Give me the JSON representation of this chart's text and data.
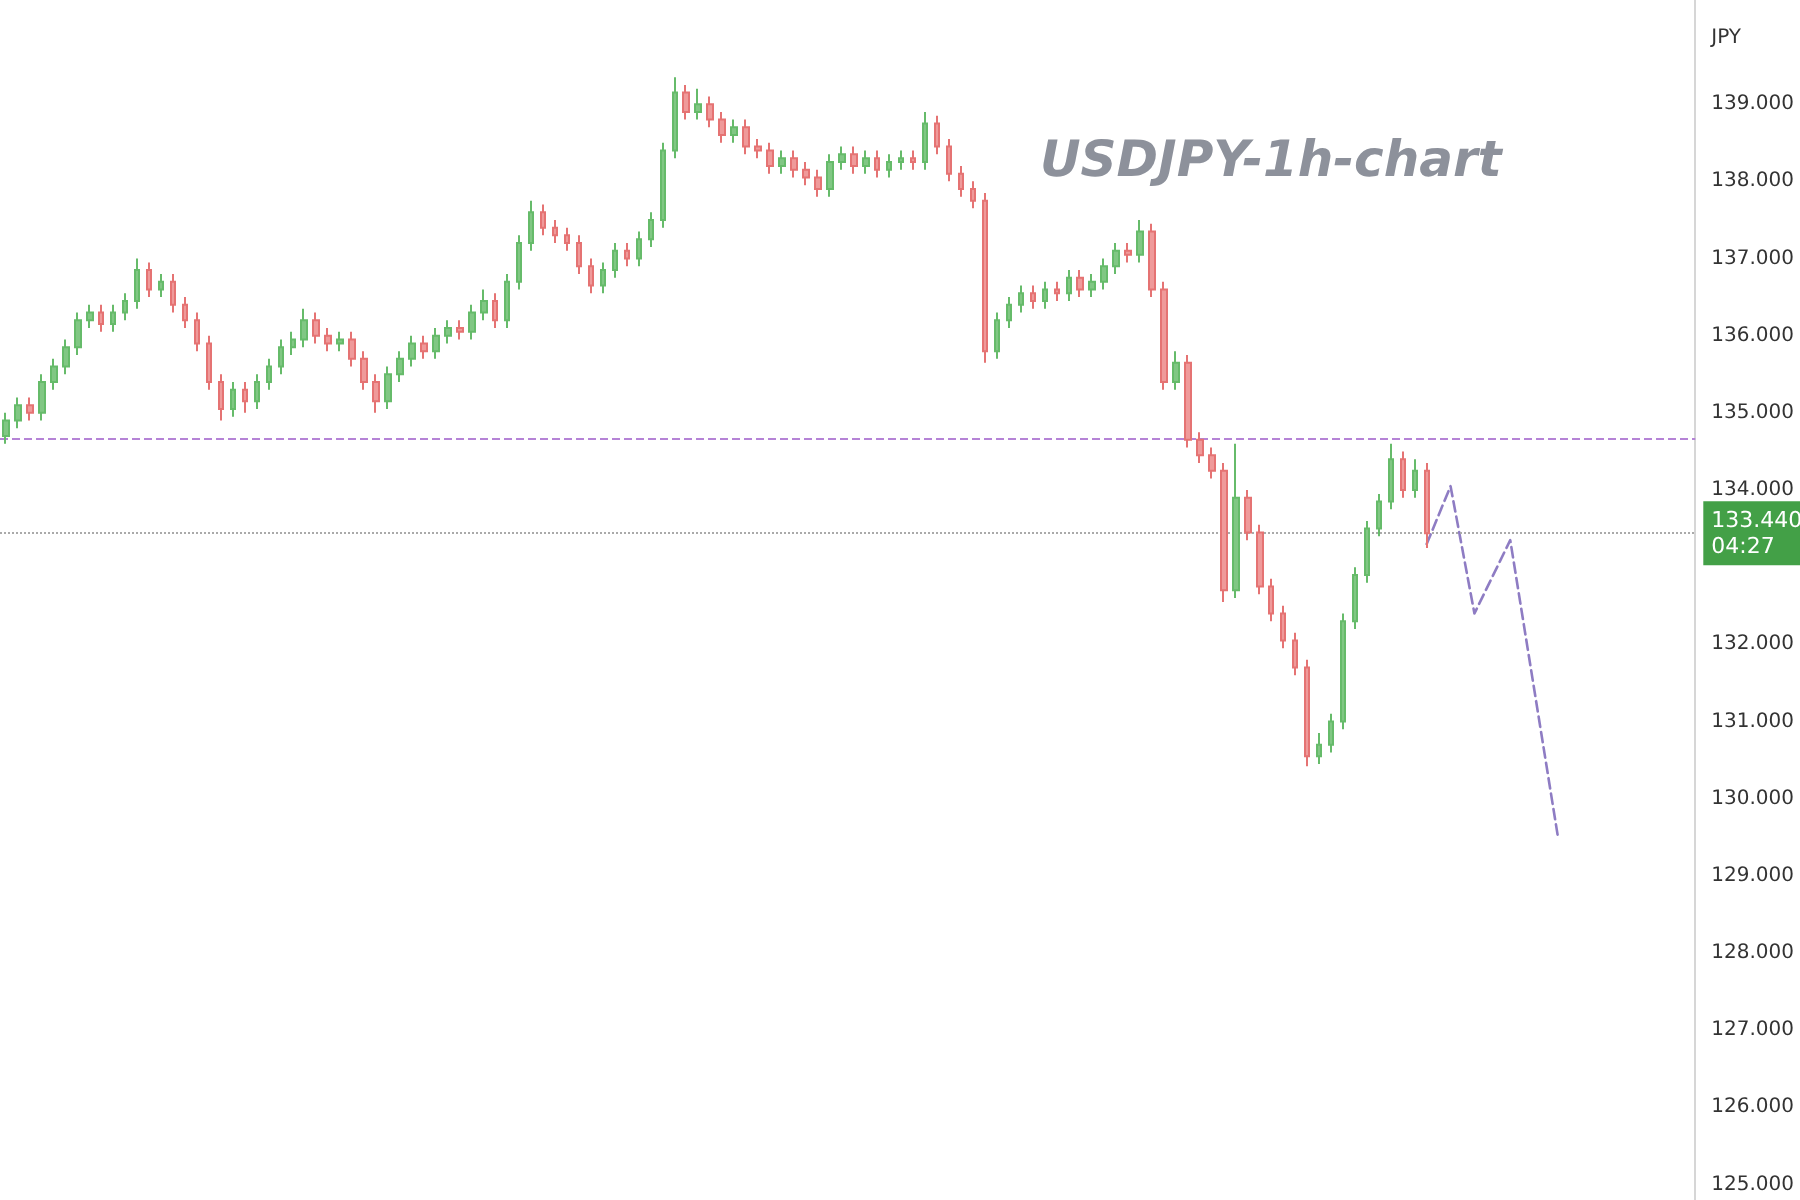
{
  "chart_data": {
    "type": "candlestick",
    "title": "USDJPY-1h-chart",
    "ylabel": "JPY",
    "categories": [
      null,
      null,
      null,
      null,
      null,
      null,
      null,
      null,
      null,
      null,
      null,
      null,
      null,
      null,
      null,
      null,
      null,
      null,
      null,
      null,
      null,
      null,
      null,
      null,
      null,
      null,
      null,
      null,
      null,
      null,
      null,
      null,
      null,
      null,
      null,
      null,
      null,
      null,
      null,
      null,
      null,
      null,
      null,
      null,
      null,
      null,
      null,
      null,
      null,
      null,
      null,
      null,
      null,
      null,
      null,
      null,
      null,
      null,
      null,
      null,
      null,
      null,
      null,
      null,
      null,
      null,
      null,
      null,
      null,
      null,
      null,
      null,
      null,
      null,
      null,
      null,
      null,
      null,
      null,
      null,
      null,
      null,
      null,
      null,
      null,
      null,
      null,
      null,
      null,
      null,
      null,
      null,
      null,
      null,
      null,
      null,
      null,
      null,
      null,
      null,
      null,
      null,
      null,
      null,
      null,
      null,
      null,
      null,
      null,
      null,
      null,
      null,
      null,
      null,
      null,
      null,
      null,
      null,
      null,
      null,
      null,
      null,
      null,
      null,
      null,
      null,
      null,
      null,
      null,
      null,
      null,
      null,
      null,
      null,
      null,
      null,
      null,
      null,
      null,
      null,
      null,
      null
    ],
    "ylim": [
      124.8,
      140.35
    ],
    "yticks": [
      {
        "value": 125,
        "label": "125.000"
      },
      {
        "value": 126,
        "label": "126.000"
      },
      {
        "value": 127,
        "label": "127.000"
      },
      {
        "value": 128,
        "label": "128.000"
      },
      {
        "value": 129,
        "label": "129.000"
      },
      {
        "value": 130,
        "label": "130.000"
      },
      {
        "value": 131,
        "label": "131.000"
      },
      {
        "value": 132,
        "label": "132.000"
      },
      {
        "value": 134,
        "label": "134.000"
      },
      {
        "value": 135,
        "label": "135.000"
      },
      {
        "value": 136,
        "label": "136.000"
      },
      {
        "value": 137,
        "label": "137.000"
      },
      {
        "value": 138,
        "label": "138.000"
      },
      {
        "value": 139,
        "label": "139.000"
      }
    ],
    "tick_labels": "y",
    "grid": false,
    "series": [
      {
        "ohlc": [
          [
            134.7,
            135.0,
            134.6,
            134.9
          ],
          [
            134.9,
            135.2,
            134.8,
            135.1
          ],
          [
            135.1,
            135.2,
            134.9,
            135.0
          ],
          [
            135.0,
            135.5,
            134.9,
            135.4
          ],
          [
            135.4,
            135.7,
            135.3,
            135.6
          ],
          [
            135.6,
            135.95,
            135.5,
            135.85
          ],
          [
            135.85,
            136.3,
            135.75,
            136.2
          ],
          [
            136.2,
            136.4,
            136.1,
            136.3
          ],
          [
            136.3,
            136.4,
            136.05,
            136.15
          ],
          [
            136.15,
            136.4,
            136.05,
            136.3
          ],
          [
            136.3,
            136.55,
            136.2,
            136.45
          ],
          [
            136.45,
            137.0,
            136.35,
            136.85
          ],
          [
            136.85,
            136.95,
            136.5,
            136.6
          ],
          [
            136.6,
            136.8,
            136.5,
            136.7
          ],
          [
            136.7,
            136.8,
            136.3,
            136.4
          ],
          [
            136.4,
            136.5,
            136.1,
            136.2
          ],
          [
            136.2,
            136.3,
            135.8,
            135.9
          ],
          [
            135.9,
            136.0,
            135.3,
            135.4
          ],
          [
            135.4,
            135.5,
            134.9,
            135.05
          ],
          [
            135.05,
            135.4,
            134.95,
            135.3
          ],
          [
            135.3,
            135.4,
            135.0,
            135.15
          ],
          [
            135.15,
            135.5,
            135.05,
            135.4
          ],
          [
            135.4,
            135.7,
            135.3,
            135.6
          ],
          [
            135.6,
            135.95,
            135.5,
            135.85
          ],
          [
            135.85,
            136.05,
            135.75,
            135.95
          ],
          [
            135.95,
            136.35,
            135.85,
            136.2
          ],
          [
            136.2,
            136.3,
            135.9,
            136.0
          ],
          [
            136.0,
            136.1,
            135.8,
            135.9
          ],
          [
            135.9,
            136.05,
            135.8,
            135.95
          ],
          [
            135.95,
            136.05,
            135.6,
            135.7
          ],
          [
            135.7,
            135.8,
            135.3,
            135.4
          ],
          [
            135.4,
            135.5,
            135.0,
            135.15
          ],
          [
            135.15,
            135.6,
            135.05,
            135.5
          ],
          [
            135.5,
            135.8,
            135.4,
            135.7
          ],
          [
            135.7,
            136.0,
            135.6,
            135.9
          ],
          [
            135.9,
            136.0,
            135.7,
            135.8
          ],
          [
            135.8,
            136.1,
            135.7,
            136.0
          ],
          [
            136.0,
            136.2,
            135.9,
            136.1
          ],
          [
            136.1,
            136.2,
            135.95,
            136.05
          ],
          [
            136.05,
            136.4,
            135.95,
            136.3
          ],
          [
            136.3,
            136.6,
            136.2,
            136.45
          ],
          [
            136.45,
            136.55,
            136.1,
            136.2
          ],
          [
            136.2,
            136.8,
            136.1,
            136.7
          ],
          [
            136.7,
            137.3,
            136.6,
            137.2
          ],
          [
            137.2,
            137.75,
            137.1,
            137.6
          ],
          [
            137.6,
            137.7,
            137.3,
            137.4
          ],
          [
            137.4,
            137.5,
            137.2,
            137.3
          ],
          [
            137.3,
            137.4,
            137.1,
            137.2
          ],
          [
            137.2,
            137.3,
            136.8,
            136.9
          ],
          [
            136.9,
            137.0,
            136.55,
            136.65
          ],
          [
            136.65,
            136.95,
            136.55,
            136.85
          ],
          [
            136.85,
            137.2,
            136.75,
            137.1
          ],
          [
            137.1,
            137.2,
            136.9,
            137.0
          ],
          [
            137.0,
            137.35,
            136.9,
            137.25
          ],
          [
            137.25,
            137.6,
            137.15,
            137.5
          ],
          [
            137.5,
            138.5,
            137.4,
            138.4
          ],
          [
            138.4,
            139.35,
            138.3,
            139.15
          ],
          [
            139.15,
            139.25,
            138.8,
            138.9
          ],
          [
            138.9,
            139.2,
            138.8,
            139.0
          ],
          [
            139.0,
            139.1,
            138.7,
            138.8
          ],
          [
            138.8,
            138.9,
            138.5,
            138.6
          ],
          [
            138.6,
            138.8,
            138.5,
            138.7
          ],
          [
            138.7,
            138.8,
            138.35,
            138.45
          ],
          [
            138.45,
            138.55,
            138.3,
            138.4
          ],
          [
            138.4,
            138.5,
            138.1,
            138.2
          ],
          [
            138.2,
            138.4,
            138.1,
            138.3
          ],
          [
            138.3,
            138.4,
            138.05,
            138.15
          ],
          [
            138.15,
            138.25,
            137.95,
            138.05
          ],
          [
            138.05,
            138.15,
            137.8,
            137.9
          ],
          [
            137.9,
            138.35,
            137.8,
            138.25
          ],
          [
            138.25,
            138.45,
            138.15,
            138.35
          ],
          [
            138.35,
            138.45,
            138.1,
            138.2
          ],
          [
            138.2,
            138.4,
            138.1,
            138.3
          ],
          [
            138.3,
            138.4,
            138.05,
            138.15
          ],
          [
            138.15,
            138.35,
            138.05,
            138.25
          ],
          [
            138.25,
            138.4,
            138.15,
            138.3
          ],
          [
            138.3,
            138.4,
            138.15,
            138.25
          ],
          [
            138.25,
            138.9,
            138.15,
            138.75
          ],
          [
            138.75,
            138.85,
            138.35,
            138.45
          ],
          [
            138.45,
            138.55,
            138.0,
            138.1
          ],
          [
            138.1,
            138.2,
            137.8,
            137.9
          ],
          [
            137.9,
            138.0,
            137.65,
            137.75
          ],
          [
            137.75,
            137.85,
            135.65,
            135.8
          ],
          [
            135.8,
            136.3,
            135.7,
            136.2
          ],
          [
            136.2,
            136.5,
            136.1,
            136.4
          ],
          [
            136.4,
            136.65,
            136.3,
            136.55
          ],
          [
            136.55,
            136.65,
            136.35,
            136.45
          ],
          [
            136.45,
            136.7,
            136.35,
            136.6
          ],
          [
            136.6,
            136.7,
            136.45,
            136.55
          ],
          [
            136.55,
            136.85,
            136.45,
            136.75
          ],
          [
            136.75,
            136.85,
            136.5,
            136.6
          ],
          [
            136.6,
            136.8,
            136.5,
            136.7
          ],
          [
            136.7,
            137.0,
            136.6,
            136.9
          ],
          [
            136.9,
            137.2,
            136.8,
            137.1
          ],
          [
            137.1,
            137.2,
            136.95,
            137.05
          ],
          [
            137.05,
            137.5,
            136.95,
            137.35
          ],
          [
            137.35,
            137.45,
            136.5,
            136.6
          ],
          [
            136.6,
            136.7,
            135.3,
            135.4
          ],
          [
            135.4,
            135.8,
            135.3,
            135.65
          ],
          [
            135.65,
            135.75,
            134.55,
            134.65
          ],
          [
            134.65,
            134.75,
            134.35,
            134.45
          ],
          [
            134.45,
            134.55,
            134.15,
            134.25
          ],
          [
            134.25,
            134.35,
            132.55,
            132.7
          ],
          [
            132.7,
            134.6,
            132.6,
            133.9
          ],
          [
            133.9,
            134.0,
            133.35,
            133.45
          ],
          [
            133.45,
            133.55,
            132.65,
            132.75
          ],
          [
            132.75,
            132.85,
            132.3,
            132.4
          ],
          [
            132.4,
            132.5,
            131.95,
            132.05
          ],
          [
            132.05,
            132.15,
            131.6,
            131.7
          ],
          [
            131.7,
            131.8,
            130.42,
            130.55
          ],
          [
            130.55,
            130.85,
            130.45,
            130.7
          ],
          [
            130.7,
            131.1,
            130.6,
            131.0
          ],
          [
            131.0,
            132.4,
            130.9,
            132.3
          ],
          [
            132.3,
            133.0,
            132.2,
            132.9
          ],
          [
            132.9,
            133.6,
            132.8,
            133.5
          ],
          [
            133.5,
            133.95,
            133.4,
            133.85
          ],
          [
            133.85,
            134.6,
            133.75,
            134.4
          ],
          [
            134.4,
            134.5,
            133.9,
            134.0
          ],
          [
            134.0,
            134.4,
            133.9,
            134.25
          ],
          [
            134.25,
            134.35,
            133.25,
            133.44
          ],
          null,
          null,
          null,
          null,
          null,
          null,
          null,
          null,
          null,
          null,
          null,
          null,
          null,
          null,
          null,
          null,
          null,
          null,
          null,
          null,
          null,
          null
        ]
      },
      {
        "type": "line",
        "color": "#8e7cc3",
        "line_style": "dashed",
        "values": [
          null,
          null,
          null,
          null,
          null,
          null,
          null,
          null,
          null,
          null,
          null,
          null,
          null,
          null,
          null,
          null,
          null,
          null,
          null,
          null,
          null,
          null,
          null,
          null,
          null,
          null,
          null,
          null,
          null,
          null,
          null,
          null,
          null,
          null,
          null,
          null,
          null,
          null,
          null,
          null,
          null,
          null,
          null,
          null,
          null,
          null,
          null,
          null,
          null,
          null,
          null,
          null,
          null,
          null,
          null,
          null,
          null,
          null,
          null,
          null,
          null,
          null,
          null,
          null,
          null,
          null,
          null,
          null,
          null,
          null,
          null,
          null,
          null,
          null,
          null,
          null,
          null,
          null,
          null,
          null,
          null,
          null,
          null,
          null,
          null,
          null,
          null,
          null,
          null,
          null,
          null,
          null,
          null,
          null,
          null,
          null,
          null,
          null,
          null,
          null,
          null,
          null,
          null,
          null,
          null,
          null,
          null,
          null,
          null,
          null,
          null,
          null,
          null,
          null,
          null,
          null,
          null,
          null,
          null,
          133.3,
          null,
          134.05,
          null,
          132.4,
          null,
          null,
          133.35,
          null,
          null,
          null,
          129.5,
          null,
          null,
          null,
          null,
          null,
          null,
          null,
          null,
          null,
          null,
          null
        ]
      }
    ],
    "ref_lines": [
      {
        "axis": "y",
        "value": 134.66,
        "color": "#b583d6",
        "line_style": "dashed"
      },
      {
        "axis": "y",
        "value": 133.44,
        "label": "133.440\n04:27",
        "color": "#aaaaaa",
        "line_style": "dotted"
      }
    ]
  }
}
